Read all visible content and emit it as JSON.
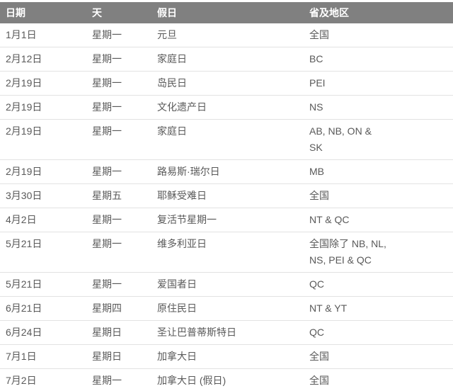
{
  "colors": {
    "header_bg": "#808080",
    "header_text": "#ffffff",
    "body_text": "#595959",
    "row_divider": "#e2e2e2",
    "page_bg": "#ffffff"
  },
  "table": {
    "columns": [
      "日期",
      "天",
      "假日",
      "省及地区"
    ],
    "rows": [
      {
        "date": "1月1日",
        "day": "星期一",
        "holiday": "元旦",
        "region": "全国"
      },
      {
        "date": "2月12日",
        "day": "星期一",
        "holiday": "家庭日",
        "region": "BC"
      },
      {
        "date": "2月19日",
        "day": "星期一",
        "holiday": "岛民日",
        "region": "PEI"
      },
      {
        "date": "2月19日",
        "day": "星期一",
        "holiday": "文化遗产日",
        "region": "NS"
      },
      {
        "date": "2月19日",
        "day": "星期一",
        "holiday": "家庭日",
        "region": "AB, NB, ON &\nSK"
      },
      {
        "date": "2月19日",
        "day": "星期一",
        "holiday": "路易斯·瑞尔日",
        "region": "MB"
      },
      {
        "date": "3月30日",
        "day": "星期五",
        "holiday": "耶稣受难日",
        "region": "全国"
      },
      {
        "date": "4月2日",
        "day": "星期一",
        "holiday": "复活节星期一",
        "region": "NT & QC"
      },
      {
        "date": "5月21日",
        "day": "星期一",
        "holiday": "维多利亚日",
        "region": "全国除了 NB, NL,\nNS, PEI & QC"
      },
      {
        "date": "5月21日",
        "day": "星期一",
        "holiday": "爱国者日",
        "region": "QC"
      },
      {
        "date": "6月21日",
        "day": "星期四",
        "holiday": "原住民日",
        "region": "NT & YT"
      },
      {
        "date": "6月24日",
        "day": "星期日",
        "holiday": "圣让巴普蒂斯特日",
        "region": "QC"
      },
      {
        "date": "7月1日",
        "day": "星期日",
        "holiday": "加拿大日",
        "region": "全国"
      },
      {
        "date": "7月2日",
        "day": "星期一",
        "holiday": "加拿大日 (假日)",
        "region": "全国"
      }
    ]
  }
}
